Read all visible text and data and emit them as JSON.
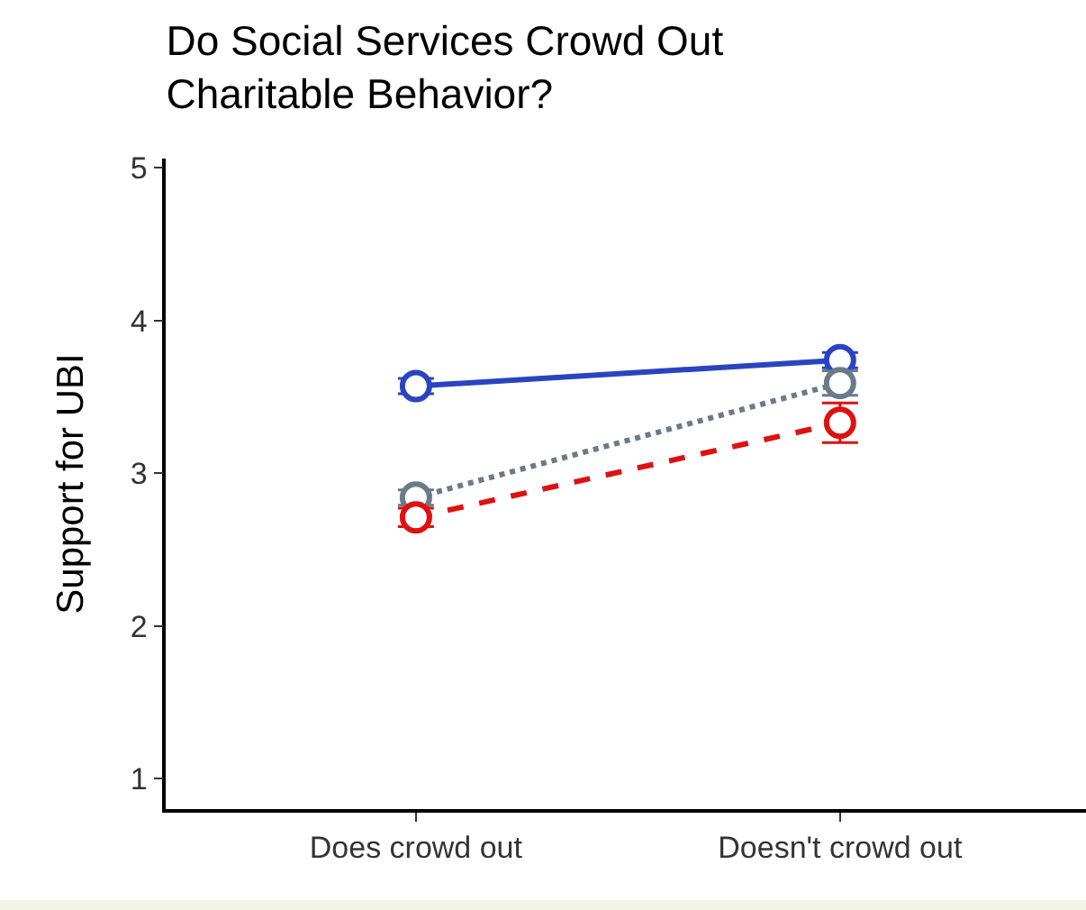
{
  "chart_data": {
    "type": "line",
    "title": "Do Social Services Crowd Out\nCharitable Behavior?",
    "ylabel": "Support for UBI",
    "categories": [
      "Does crowd out",
      "Doesn't crowd out"
    ],
    "series": [
      {
        "color": "#2a44c0",
        "values": [
          3.57,
          3.74
        ],
        "errors": [
          0.05,
          0.05
        ],
        "line_style": "solid"
      },
      {
        "color": "#6a7a88",
        "values": [
          2.84,
          3.59
        ],
        "errors": [
          0.05,
          0.08
        ],
        "line_style": "dotted"
      },
      {
        "color": "#dd1111",
        "values": [
          2.71,
          3.33
        ],
        "errors": [
          0.06,
          0.13
        ],
        "line_style": "dashed"
      }
    ],
    "ylim": [
      0.8,
      5.06
    ],
    "yticks": [
      1,
      2,
      3,
      4,
      5
    ],
    "marker": "circle"
  }
}
